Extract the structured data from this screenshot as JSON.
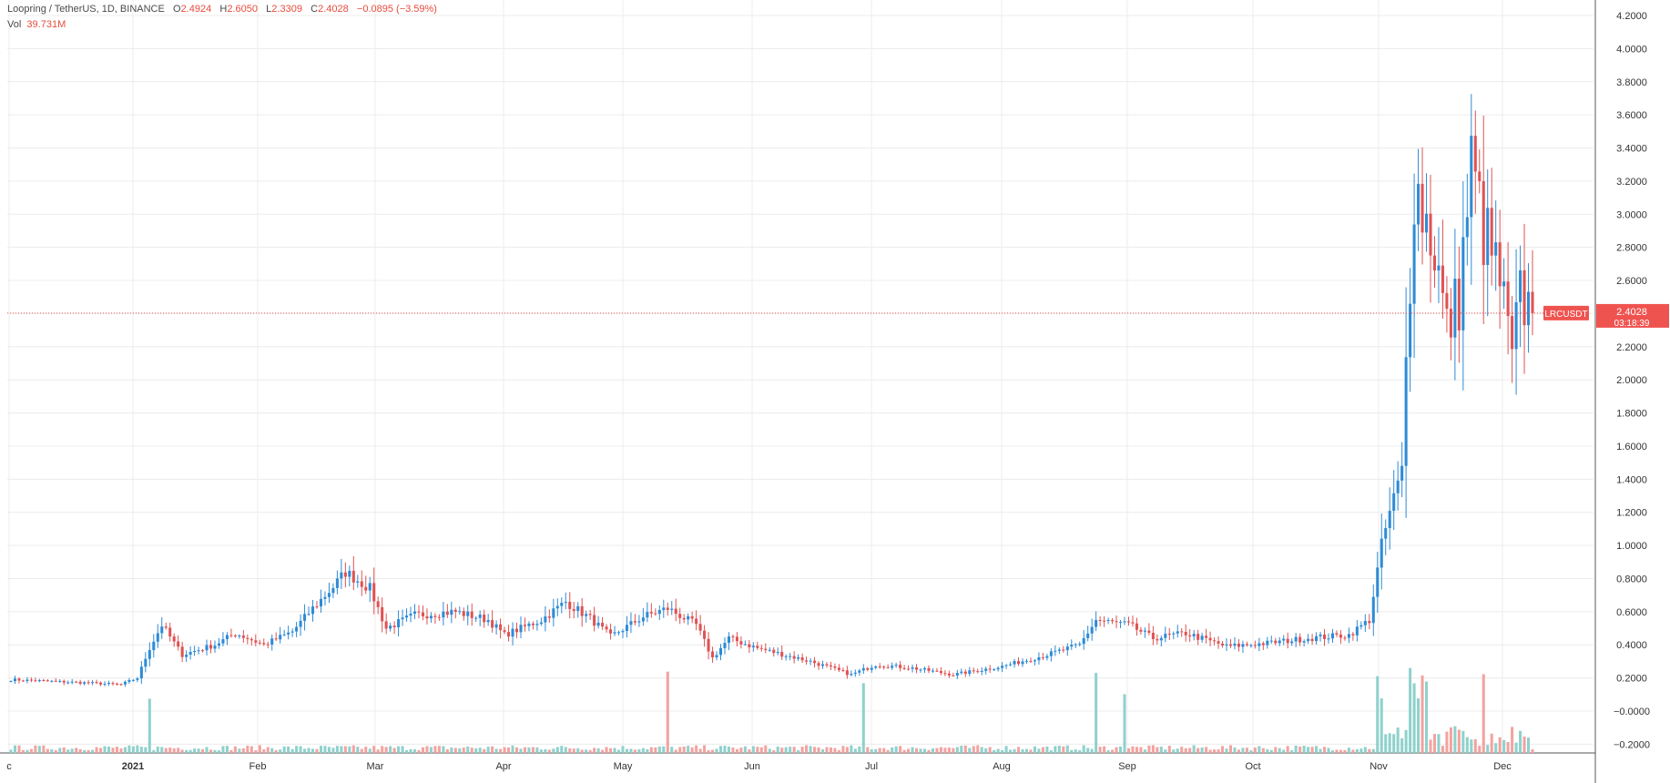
{
  "header": {
    "symbol_line": "Loopring / TetherUS, 1D, BINANCE",
    "ohlc": [
      {
        "label": "O",
        "value": "2.4924"
      },
      {
        "label": "H",
        "value": "2.6050"
      },
      {
        "label": "L",
        "value": "2.3309"
      },
      {
        "label": "C",
        "value": "2.4028"
      }
    ],
    "change": "−0.0895 (−3.59%)",
    "vol_label": "Vol",
    "vol_value": "39.731M"
  },
  "price_tag": {
    "ticker": "LRCUSDT",
    "price": "2.4028",
    "countdown": "03:18:39",
    "color": "#ef5350"
  },
  "colors": {
    "up": "#2e8bd6",
    "down": "#e05252",
    "vol_up": "#8fd1cc",
    "vol_down": "#f2a3a0",
    "grid": "#ececec",
    "axis_text": "#333333"
  },
  "chart_data": {
    "type": "candlestick",
    "timeframe": "1D",
    "exchange": "BINANCE",
    "y_ticks": [
      "4.2000",
      "4.0000",
      "3.8000",
      "3.6000",
      "3.4000",
      "3.2000",
      "3.0000",
      "2.8000",
      "2.6000",
      "2.4000",
      "2.2000",
      "2.0000",
      "1.8000",
      "1.6000",
      "1.4000",
      "1.2000",
      "1.0000",
      "0.8000",
      "0.6000",
      "0.4000",
      "0.2000",
      "−0.0000",
      "−0.2000"
    ],
    "ylim": [
      -0.2,
      4.2
    ],
    "x_ticks": [
      "c",
      "2021",
      "Feb",
      "Mar",
      "Apr",
      "May",
      "Jun",
      "Jul",
      "Aug",
      "Sep",
      "Oct",
      "Nov",
      "Dec"
    ],
    "last_price": 2.4028,
    "price_keypoints": [
      {
        "date": "2020-12-01",
        "close": 0.19
      },
      {
        "date": "2020-12-20",
        "close": 0.17
      },
      {
        "date": "2020-12-28",
        "close": 0.16
      },
      {
        "date": "2021-01-01",
        "close": 0.2
      },
      {
        "date": "2021-01-04",
        "close": 0.38
      },
      {
        "date": "2021-01-07",
        "close": 0.52
      },
      {
        "date": "2021-01-12",
        "close": 0.34
      },
      {
        "date": "2021-01-20",
        "close": 0.4
      },
      {
        "date": "2021-01-25",
        "close": 0.47
      },
      {
        "date": "2021-02-01",
        "close": 0.4
      },
      {
        "date": "2021-02-08",
        "close": 0.48
      },
      {
        "date": "2021-02-13",
        "close": 0.62
      },
      {
        "date": "2021-02-18",
        "close": 0.75
      },
      {
        "date": "2021-02-21",
        "close": 0.84
      },
      {
        "date": "2021-02-27",
        "close": 0.74
      },
      {
        "date": "2021-03-03",
        "close": 0.5
      },
      {
        "date": "2021-03-10",
        "close": 0.58
      },
      {
        "date": "2021-03-20",
        "close": 0.6
      },
      {
        "date": "2021-03-28",
        "close": 0.55
      },
      {
        "date": "2021-04-01",
        "close": 0.46
      },
      {
        "date": "2021-04-10",
        "close": 0.55
      },
      {
        "date": "2021-04-16",
        "close": 0.66
      },
      {
        "date": "2021-04-22",
        "close": 0.56
      },
      {
        "date": "2021-04-27",
        "close": 0.45
      },
      {
        "date": "2021-05-05",
        "close": 0.57
      },
      {
        "date": "2021-05-11",
        "close": 0.62
      },
      {
        "date": "2021-05-18",
        "close": 0.52
      },
      {
        "date": "2021-05-22",
        "close": 0.32
      },
      {
        "date": "2021-05-26",
        "close": 0.44
      },
      {
        "date": "2021-06-02",
        "close": 0.38
      },
      {
        "date": "2021-06-15",
        "close": 0.3
      },
      {
        "date": "2021-06-25",
        "close": 0.22
      },
      {
        "date": "2021-07-01",
        "close": 0.28
      },
      {
        "date": "2021-07-10",
        "close": 0.26
      },
      {
        "date": "2021-07-20",
        "close": 0.22
      },
      {
        "date": "2021-08-01",
        "close": 0.27
      },
      {
        "date": "2021-08-12",
        "close": 0.34
      },
      {
        "date": "2021-08-20",
        "close": 0.4
      },
      {
        "date": "2021-08-24",
        "close": 0.55
      },
      {
        "date": "2021-09-01",
        "close": 0.52
      },
      {
        "date": "2021-09-07",
        "close": 0.44
      },
      {
        "date": "2021-09-15",
        "close": 0.47
      },
      {
        "date": "2021-09-25",
        "close": 0.39
      },
      {
        "date": "2021-10-05",
        "close": 0.41
      },
      {
        "date": "2021-10-15",
        "close": 0.44
      },
      {
        "date": "2021-10-25",
        "close": 0.46
      },
      {
        "date": "2021-10-30",
        "close": 0.55
      },
      {
        "date": "2021-11-02",
        "close": 1.0
      },
      {
        "date": "2021-11-04",
        "close": 1.2
      },
      {
        "date": "2021-11-07",
        "close": 1.45
      },
      {
        "date": "2021-11-08",
        "close": 2.1
      },
      {
        "date": "2021-11-10",
        "close": 3.2
      },
      {
        "date": "2021-11-15",
        "close": 2.8
      },
      {
        "date": "2021-11-18",
        "close": 2.3
      },
      {
        "date": "2021-11-21",
        "close": 2.5
      },
      {
        "date": "2021-11-24",
        "close": 3.3
      },
      {
        "date": "2021-11-27",
        "close": 2.9
      },
      {
        "date": "2021-12-01",
        "close": 2.6
      },
      {
        "date": "2021-12-04",
        "close": 2.1
      },
      {
        "date": "2021-12-06",
        "close": 2.5
      },
      {
        "date": "2021-12-09",
        "close": 2.4028
      }
    ],
    "volume_spike_dates": [
      "2021-01-04",
      "2021-05-11",
      "2021-06-28",
      "2021-08-24",
      "2021-08-31",
      "2021-11-01",
      "2021-11-02",
      "2021-11-09",
      "2021-11-10",
      "2021-11-11",
      "2021-11-12",
      "2021-11-13",
      "2021-11-27"
    ],
    "legend": "none"
  }
}
